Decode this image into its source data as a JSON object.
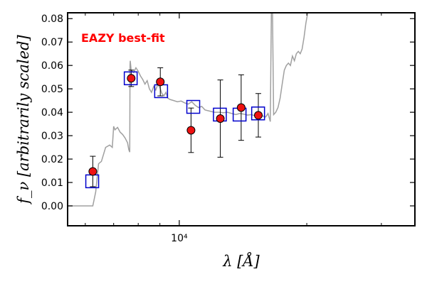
{
  "chart_data": {
    "type": "scatter",
    "title": "",
    "xlabel": "λ [Å]",
    "ylabel": "f_ν [arbitrarily scaled]",
    "x_scale": "log",
    "xlim": [
      5450,
      36000
    ],
    "ylim": [
      -0.0085,
      0.0825
    ],
    "yticks": [
      0.0,
      0.01,
      0.02,
      0.03,
      0.04,
      0.05,
      0.06,
      0.07,
      0.08
    ],
    "ytick_labels": [
      "0.00",
      "0.01",
      "0.02",
      "0.03",
      "0.04",
      "0.05",
      "0.06",
      "0.07",
      "0.08"
    ],
    "xticks_major": [
      10000
    ],
    "xtick_labels": [
      "10⁴"
    ],
    "xticks_minor": [
      6000,
      7000,
      8000,
      9000,
      20000,
      30000
    ],
    "annotation": {
      "text": "EAZY best-fit",
      "color": "#ff0000"
    },
    "colors": {
      "sed": "#a0a0a0",
      "model_box": "#0000cc",
      "observed_fill": "#ee1111",
      "observed_edge": "#000000",
      "errorbar": "#000000"
    },
    "series": [
      {
        "name": "",
        "kind": "observed",
        "x": [
          6250,
          7700,
          9020,
          10660,
          12500,
          14000,
          15370
        ],
        "y": [
          0.0147,
          0.0545,
          0.053,
          0.0323,
          0.0373,
          0.042,
          0.0387
        ],
        "yerr": [
          0.0065,
          0.0035,
          0.006,
          0.0095,
          0.0165,
          0.014,
          0.0093
        ]
      },
      {
        "name": "",
        "kind": "model",
        "x": [
          6230,
          7680,
          9060,
          10790,
          12470,
          13880,
          15350
        ],
        "y": [
          0.0105,
          0.0545,
          0.049,
          0.0423,
          0.039,
          0.039,
          0.0395
        ]
      },
      {
        "name": "",
        "kind": "sed",
        "x": [
          5450,
          6150,
          6250,
          6350,
          6450,
          6550,
          6700,
          6850,
          6950,
          7000,
          7050,
          7150,
          7250,
          7350,
          7450,
          7550,
          7600,
          7640,
          7650,
          7660,
          7700,
          7800,
          7900,
          8000,
          8100,
          8200,
          8300,
          8400,
          8500,
          8600,
          8700,
          8800,
          8900,
          9000,
          9100,
          9200,
          9300,
          9400,
          9500,
          9700,
          9900,
          10100,
          10300,
          10500,
          10700,
          10900,
          11100,
          11300,
          11500,
          11800,
          12100,
          12400,
          12700,
          13000,
          13300,
          13600,
          13900,
          14200,
          14500,
          14800,
          15100,
          15400,
          15700,
          16000,
          16200,
          16400,
          16500,
          16600,
          16700,
          16900,
          17100,
          17300,
          17500,
          17700,
          17900,
          18100,
          18300,
          18500,
          18700,
          18900,
          19100,
          19300,
          19500,
          19700,
          19900,
          20100
        ],
        "y": [
          0.0,
          0.0,
          0.0,
          0.006,
          0.018,
          0.019,
          0.025,
          0.026,
          0.025,
          0.034,
          0.0325,
          0.0335,
          0.0315,
          0.0305,
          0.029,
          0.027,
          0.024,
          0.023,
          0.06,
          0.062,
          0.058,
          0.057,
          0.059,
          0.0575,
          0.0555,
          0.054,
          0.052,
          0.0535,
          0.05,
          0.0485,
          0.051,
          0.0495,
          0.052,
          0.0505,
          0.048,
          0.047,
          0.0485,
          0.046,
          0.0455,
          0.045,
          0.0445,
          0.0448,
          0.044,
          0.0435,
          0.0445,
          0.043,
          0.042,
          0.0425,
          0.041,
          0.0405,
          0.04,
          0.04,
          0.0398,
          0.04,
          0.0395,
          0.039,
          0.0395,
          0.0392,
          0.0388,
          0.039,
          0.0385,
          0.038,
          0.0385,
          0.038,
          0.0395,
          0.036,
          0.0825,
          0.0825,
          0.039,
          0.04,
          0.042,
          0.046,
          0.052,
          0.058,
          0.06,
          0.061,
          0.06,
          0.064,
          0.062,
          0.065,
          0.066,
          0.065,
          0.067,
          0.072,
          0.078,
          0.0825
        ]
      }
    ]
  }
}
